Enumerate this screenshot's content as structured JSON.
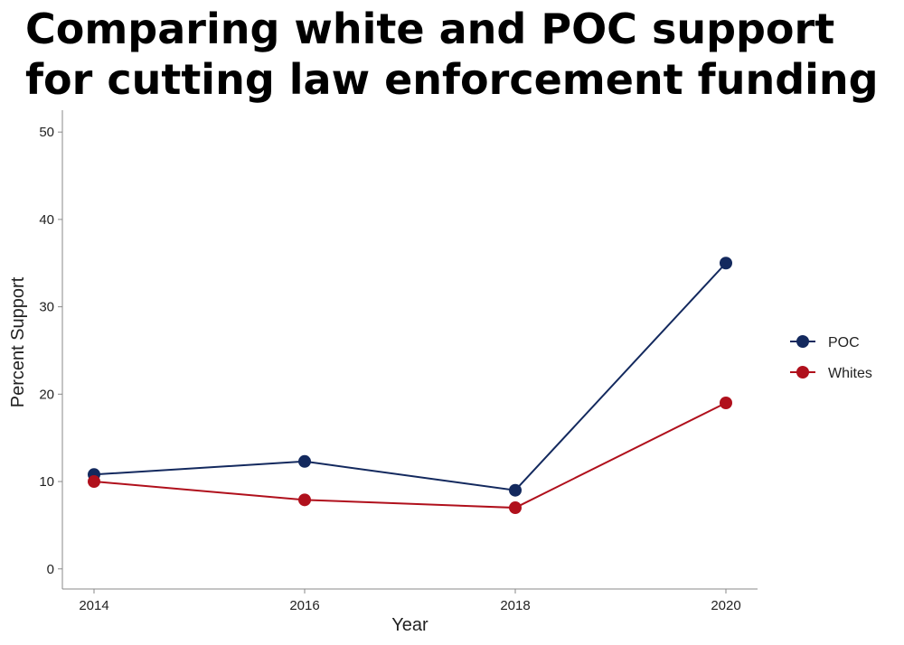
{
  "chart_data": {
    "type": "line",
    "title_lines": [
      "Comparing white and POC support",
      "for cutting law enforcement funding"
    ],
    "xlabel": "Year",
    "ylabel": "Percent Support",
    "x": [
      2014,
      2016,
      2018,
      2020
    ],
    "x_tick_labels": [
      "2014",
      "2016",
      "2018",
      "2020"
    ],
    "ylim": [
      -2.3,
      52.5
    ],
    "y_ticks": [
      0,
      10,
      20,
      30,
      40,
      50
    ],
    "y_tick_labels": [
      "0",
      "10",
      "20",
      "30",
      "40",
      "50"
    ],
    "grid": false,
    "legend_position": "right",
    "series": [
      {
        "name": "POC",
        "color": "#13295e",
        "values": [
          10.8,
          12.3,
          9.0,
          35.0
        ]
      },
      {
        "name": "Whites",
        "color": "#b0101c",
        "values": [
          10.0,
          7.9,
          7.0,
          19.0
        ]
      }
    ]
  }
}
